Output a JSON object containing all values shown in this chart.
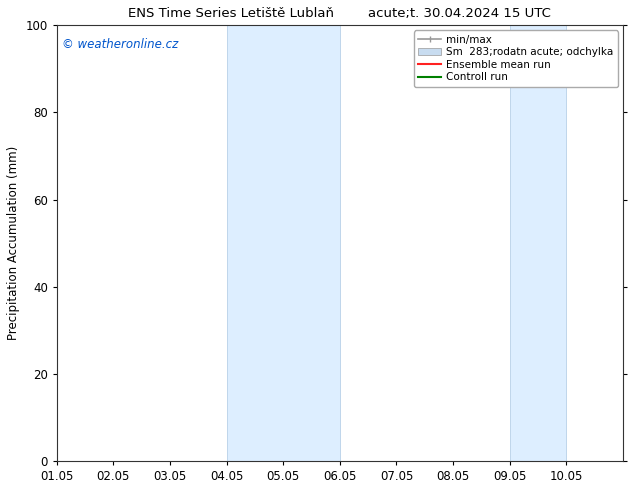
{
  "title": "ENS Time Series Letiště Lublaň        acute;t. 30.04.2024 15 UTC",
  "ylabel": "Precipitation Accumulation (mm)",
  "watermark": "© weatheronline.cz",
  "watermark_color": "#0055cc",
  "ylim": [
    0,
    100
  ],
  "xlim_start": 0.0,
  "xlim_end": 10.0,
  "xtick_positions": [
    0.0,
    1.0,
    2.0,
    3.0,
    4.0,
    5.0,
    6.0,
    7.0,
    8.0,
    9.0
  ],
  "xtick_labels": [
    "01.05",
    "02.05",
    "03.05",
    "04.05",
    "05.05",
    "06.05",
    "07.05",
    "08.05",
    "09.05",
    "10.05"
  ],
  "ytick_values": [
    0,
    20,
    40,
    60,
    80,
    100
  ],
  "shaded_regions": [
    {
      "xstart": 3.0,
      "xend": 5.0
    },
    {
      "xstart": 8.0,
      "xend": 9.0
    }
  ],
  "shaded_color": "#ddeeff",
  "shaded_edge_color": "#b8d0e8",
  "legend_entries": [
    {
      "label": "min/max",
      "color": "#999999",
      "lw": 1.2
    },
    {
      "label": "Sm  283;rodatn acute; odchylka",
      "color": "#c8dcf0",
      "lw": 8
    },
    {
      "label": "Ensemble mean run",
      "color": "#ff2020",
      "lw": 1.5
    },
    {
      "label": "Controll run",
      "color": "#008000",
      "lw": 1.5
    }
  ],
  "background_color": "#ffffff",
  "font_size": 8.5,
  "title_font_size": 9.5
}
